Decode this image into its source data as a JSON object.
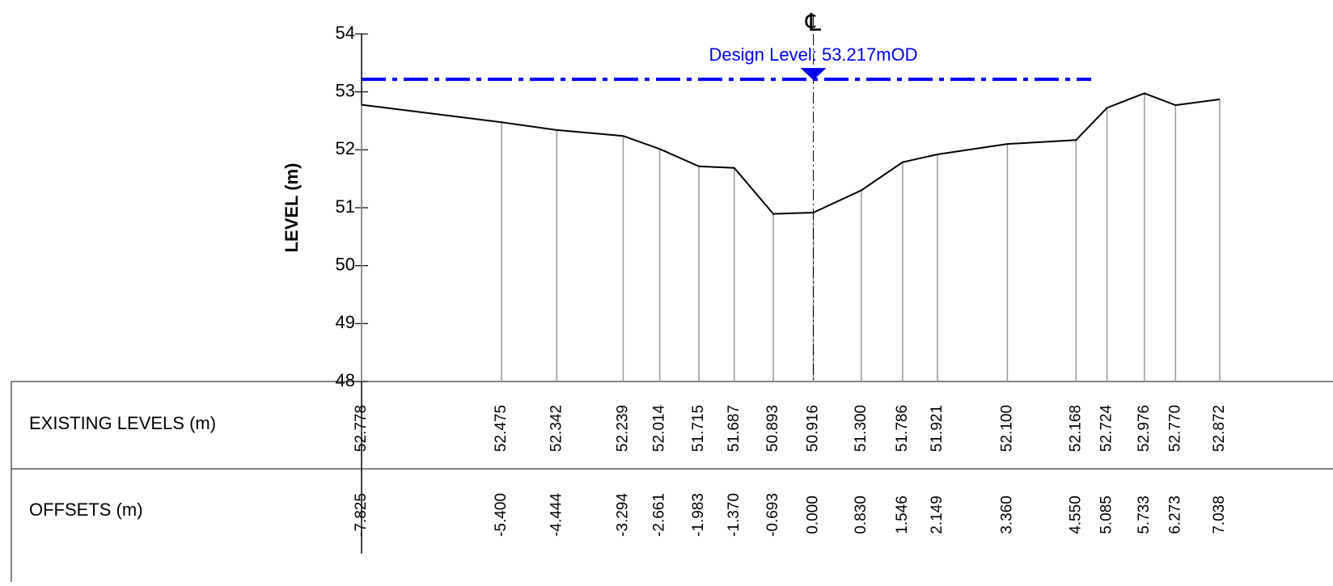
{
  "chart_data": {
    "type": "line",
    "y_label": "LEVEL (m)",
    "centerline_label": "℄",
    "x": [
      -7.825,
      -5.4,
      -4.444,
      -3.294,
      -2.661,
      -1.983,
      -1.37,
      -0.693,
      0,
      0.83,
      1.546,
      2.149,
      3.36,
      4.55,
      5.085,
      5.733,
      6.273,
      7.038
    ],
    "x_labels": [
      "-7.825",
      "-5.400",
      "-4.444",
      "-3.294",
      "-2.661",
      "-1.983",
      "-1.370",
      "-0.693",
      "0.000",
      "0.830",
      "1.546",
      "2.149",
      "3.360",
      "4.550",
      "5.085",
      "5.733",
      "6.273",
      "7.038"
    ],
    "series": [
      {
        "color": "#000000",
        "values": [
          52.778,
          52.475,
          52.342,
          52.239,
          52.014,
          51.715,
          51.687,
          50.893,
          50.916,
          51.3,
          51.786,
          51.921,
          52.1,
          52.168,
          52.724,
          52.976,
          52.77,
          52.872
        ],
        "value_labels": [
          "52.778",
          "52.475",
          "52.342",
          "52.239",
          "52.014",
          "51.715",
          "51.687",
          "50.893",
          "50.916",
          "51.300",
          "51.786",
          "51.921",
          "52.100",
          "52.168",
          "52.724",
          "52.976",
          "52.770",
          "52.872"
        ]
      }
    ],
    "design_level": {
      "value": 53.217,
      "label": "Design Level: 53.217mOD",
      "color": "#0000ee"
    },
    "xlim": [
      -7.825,
      9
    ],
    "ylim": [
      48,
      54
    ],
    "yticks": [
      48,
      49,
      50,
      51,
      52,
      53,
      54
    ],
    "table_rows": [
      "EXISTING LEVELS (m)",
      "OFFSETS (m)"
    ]
  }
}
